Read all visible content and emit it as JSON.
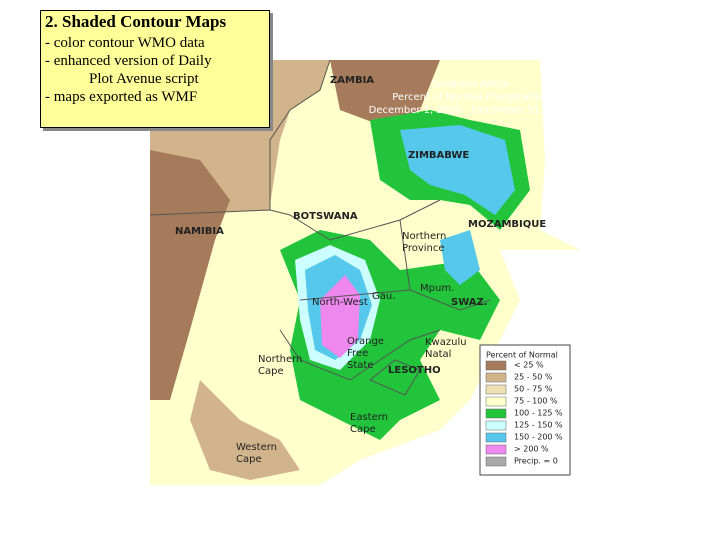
{
  "callout": {
    "title": "2.  Shaded Contour Maps",
    "bullets": [
      "- color contour WMO data",
      "- enhanced version of Daily",
      "Plot Avenue script",
      "- maps exported as WMF"
    ]
  },
  "map": {
    "title": [
      "Southern Africa",
      "Percent of Normal Precipitation",
      "December 1, 2000 - December 31, 2000"
    ],
    "labels": [
      [
        "ZAMBIA"
      ],
      [
        "ZIMBABWE"
      ],
      [
        "BOTSWANA"
      ],
      [
        "NAMIBIA"
      ],
      [
        "MOZAMBIQUE"
      ],
      [
        "Northern",
        "Province"
      ],
      [
        "Mpum."
      ],
      [
        "Gau."
      ],
      [
        "SWAZ."
      ],
      [
        "North-West"
      ],
      [
        "Kwazulu",
        "Natal"
      ],
      [
        "Orange",
        "Free",
        "State"
      ],
      [
        "LESOTHO"
      ],
      [
        "Northern",
        "Cape"
      ],
      [
        "Eastern",
        "Cape"
      ],
      [
        "Western",
        "Cape"
      ]
    ]
  },
  "legend": {
    "title": "Percent of Normal",
    "items": [
      {
        "label": "< 25 %",
        "color": "#a57b5b"
      },
      {
        "label": "25 - 50 %",
        "color": "#d2b48c"
      },
      {
        "label": "50 - 75 %",
        "color": "#efe0b4"
      },
      {
        "label": "75 - 100 %",
        "color": "#ffffcc"
      },
      {
        "label": "100 - 125 %",
        "color": "#22c43c"
      },
      {
        "label": "125 - 150 %",
        "color": "#ccffff"
      },
      {
        "label": "150 - 200 %",
        "color": "#55c8ec"
      },
      {
        "label": "> 200 %",
        "color": "#ee88ee"
      },
      {
        "label": "Precip. = 0",
        "color": "#aaaaaa"
      }
    ]
  }
}
